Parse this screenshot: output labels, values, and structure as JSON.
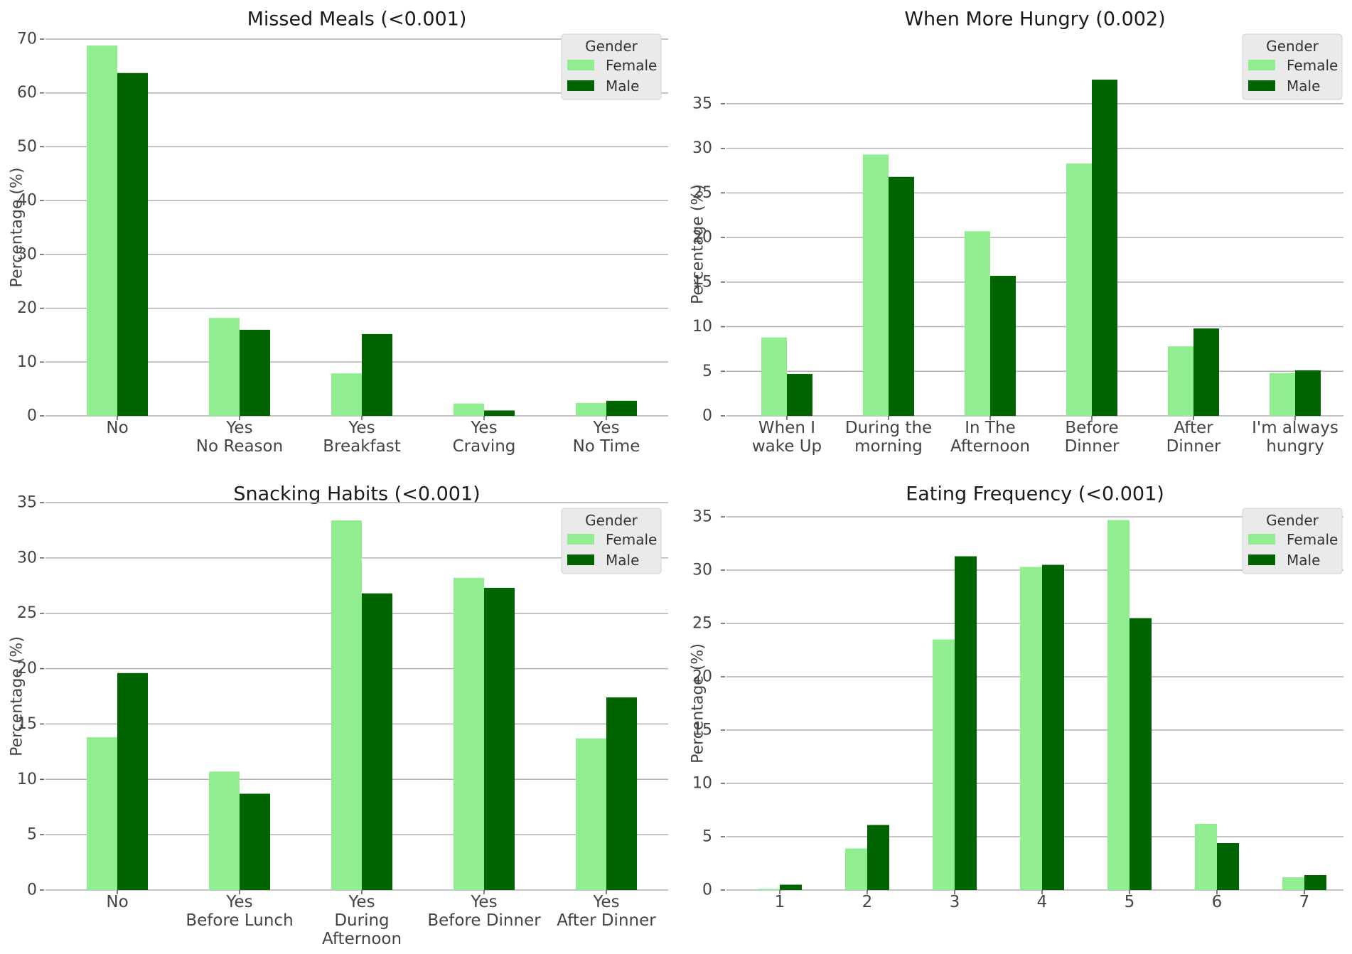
{
  "colors": {
    "female": "#90ee90",
    "male": "#006400",
    "grid": "#b0b0b0",
    "legend_bg": "#eaeaea"
  },
  "legend": {
    "title": "Gender",
    "series": [
      "Female",
      "Male"
    ]
  },
  "chart_data": [
    {
      "type": "bar",
      "title": "Missed Meals (<0.001)",
      "xlabel": "",
      "ylabel": "Percentage (%)",
      "ylim": [
        0,
        70
      ],
      "yticks": [
        0,
        10,
        20,
        30,
        40,
        50,
        60,
        70
      ],
      "grid": true,
      "legend_position": "top-right",
      "categories": [
        [
          "No"
        ],
        [
          "Yes",
          "No Reason"
        ],
        [
          "Yes",
          "Breakfast"
        ],
        [
          "Yes",
          "Craving"
        ],
        [
          "Yes",
          "No Time"
        ]
      ],
      "series": [
        {
          "name": "Female",
          "values": [
            68.8,
            18.2,
            7.9,
            2.3,
            2.4
          ]
        },
        {
          "name": "Male",
          "values": [
            63.7,
            16.0,
            15.2,
            1.0,
            2.8
          ]
        }
      ]
    },
    {
      "type": "bar",
      "title": "When More Hungry (0.002)",
      "xlabel": "",
      "ylabel": "Percentage (%)",
      "ylim": [
        0,
        38.5
      ],
      "yticks": [
        0,
        5,
        10,
        15,
        20,
        25,
        30,
        35
      ],
      "grid": true,
      "legend_position": "top-right",
      "categories": [
        [
          "When I",
          "wake Up"
        ],
        [
          "During the",
          "morning"
        ],
        [
          "In The",
          "Afternoon"
        ],
        [
          "Before",
          "Dinner"
        ],
        [
          "After",
          "Dinner"
        ],
        [
          "I'm always",
          "hungry"
        ]
      ],
      "series": [
        {
          "name": "Female",
          "values": [
            8.8,
            29.3,
            20.7,
            28.3,
            7.8,
            4.8
          ]
        },
        {
          "name": "Male",
          "values": [
            4.7,
            26.8,
            15.7,
            37.7,
            9.8,
            5.1
          ]
        }
      ]
    },
    {
      "type": "bar",
      "title": "Snacking Habits (<0.001)",
      "xlabel": "",
      "ylabel": "Percentage (%)",
      "ylim": [
        0,
        35
      ],
      "yticks": [
        0,
        5,
        10,
        15,
        20,
        25,
        30,
        35
      ],
      "grid": true,
      "legend_position": "top-right",
      "categories": [
        [
          "No"
        ],
        [
          "Yes",
          "Before Lunch"
        ],
        [
          "Yes",
          "During",
          "Afternoon"
        ],
        [
          "Yes",
          "Before Dinner"
        ],
        [
          "Yes",
          "After Dinner"
        ]
      ],
      "series": [
        {
          "name": "Female",
          "values": [
            13.8,
            10.7,
            33.4,
            28.2,
            13.7
          ]
        },
        {
          "name": "Male",
          "values": [
            19.6,
            8.7,
            26.8,
            27.3,
            17.4
          ]
        }
      ]
    },
    {
      "type": "bar",
      "title": "Eating Frequency (<0.001)",
      "xlabel": "",
      "ylabel": "Percentage (%)",
      "ylim": [
        0,
        35
      ],
      "yticks": [
        0,
        5,
        10,
        15,
        20,
        25,
        30,
        35
      ],
      "grid": true,
      "legend_position": "top-right",
      "categories": [
        [
          "1"
        ],
        [
          "2"
        ],
        [
          "3"
        ],
        [
          "4"
        ],
        [
          "5"
        ],
        [
          "6"
        ],
        [
          "7"
        ]
      ],
      "series": [
        {
          "name": "Female",
          "values": [
            0.1,
            3.9,
            23.5,
            30.3,
            34.7,
            6.2,
            1.2
          ]
        },
        {
          "name": "Male",
          "values": [
            0.5,
            6.1,
            31.3,
            30.5,
            25.5,
            4.4,
            1.4
          ]
        }
      ]
    }
  ]
}
